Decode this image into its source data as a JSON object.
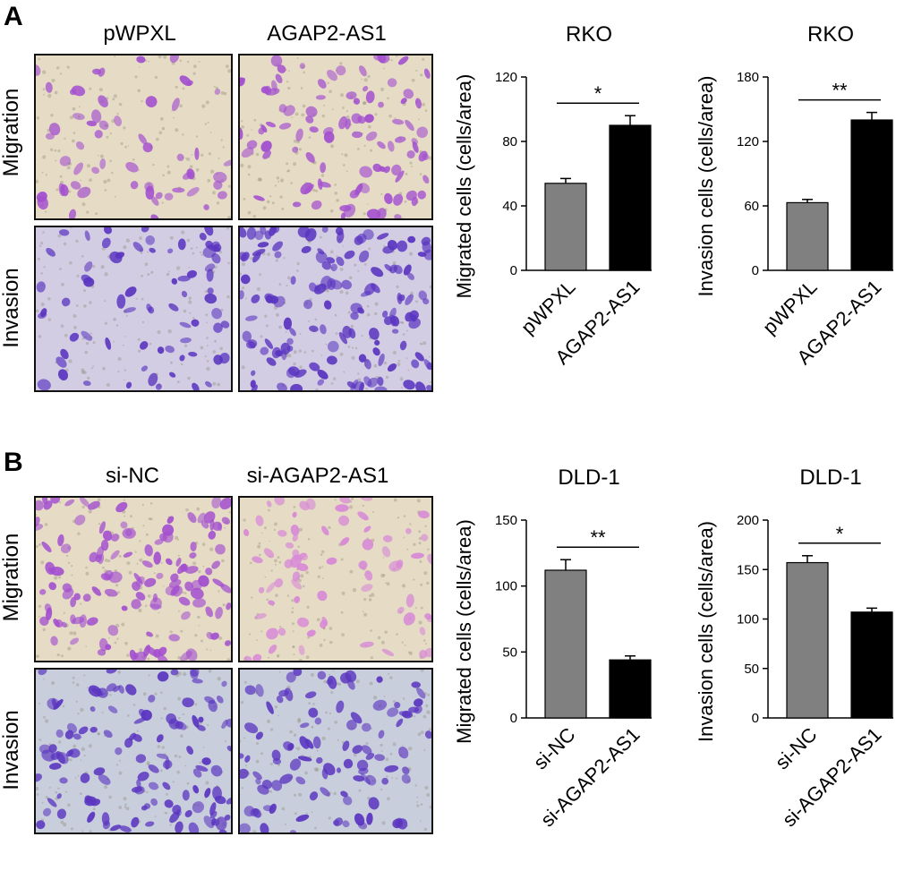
{
  "panels": {
    "A": {
      "letter": "A",
      "col_titles": [
        "pWPXL",
        "AGAP2-AS1"
      ],
      "row_labels": [
        "Migration",
        "Invasion"
      ]
    },
    "B": {
      "letter": "B",
      "col_titles": [
        "si-NC",
        "si-AGAP2-AS1"
      ],
      "row_labels": [
        "Migration",
        "Invasion"
      ]
    }
  },
  "colors": {
    "bar_control": "#808080",
    "bar_treatment": "#000000",
    "migration_bg": "#e6dcc6",
    "migration_cell": "#a34fcf",
    "invasion_bg": "#d3cde4",
    "invasion_cell": "#5a35c0",
    "invasion_bg_B": "#c9cedd",
    "migration_cell_faint": "#d788d6"
  },
  "chart_data": [
    {
      "id": "A-migration",
      "type": "bar",
      "title": "RKO",
      "ylabel": "Migrated cells (cells/area)",
      "categories": [
        "pWPXL",
        "AGAP2-AS1"
      ],
      "values": [
        54,
        90
      ],
      "errors": [
        3,
        6
      ],
      "ylim": [
        0,
        120
      ],
      "yticks": [
        0,
        40,
        80,
        120
      ],
      "significance": "*"
    },
    {
      "id": "A-invasion",
      "type": "bar",
      "title": "RKO",
      "ylabel": "Invasion cells (cells/area)",
      "categories": [
        "pWPXL",
        "AGAP2-AS1"
      ],
      "values": [
        63,
        140
      ],
      "errors": [
        3,
        7
      ],
      "ylim": [
        0,
        180
      ],
      "yticks": [
        0,
        60,
        120,
        180
      ],
      "significance": "**"
    },
    {
      "id": "B-migration",
      "type": "bar",
      "title": "DLD-1",
      "ylabel": "Migrated cells (cells/area)",
      "categories": [
        "si-NC",
        "si-AGAP2-AS1"
      ],
      "values": [
        112,
        44
      ],
      "errors": [
        8,
        3
      ],
      "ylim": [
        0,
        150
      ],
      "yticks": [
        0,
        50,
        100,
        150
      ],
      "significance": "**"
    },
    {
      "id": "B-invasion",
      "type": "bar",
      "title": "DLD-1",
      "ylabel": "Invasion cells (cells/area)",
      "categories": [
        "si-NC",
        "si-AGAP2-AS1"
      ],
      "values": [
        157,
        107
      ],
      "errors": [
        7,
        4
      ],
      "ylim": [
        0,
        200
      ],
      "yticks": [
        0,
        50,
        100,
        150,
        200
      ],
      "significance": "*"
    }
  ]
}
